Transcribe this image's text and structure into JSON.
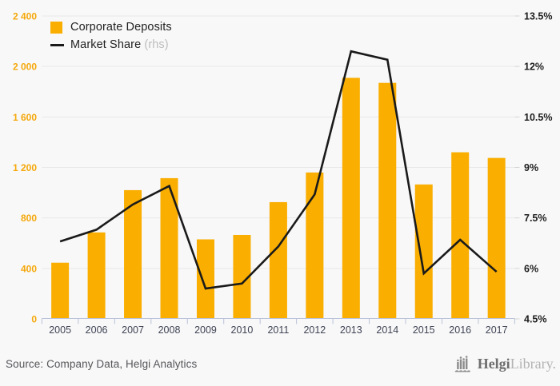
{
  "legend": {
    "series1": "Corporate Deposits",
    "series2": "Market Share",
    "series2_suffix": "(rhs)"
  },
  "footer": {
    "source": "Source: Company Data, Helgi Analytics",
    "logo_bold": "Helgi",
    "logo_light": "Library."
  },
  "colors": {
    "bar": "#f9ae00",
    "line": "#1a1a1a",
    "left_axis_label": "#f5a80c",
    "right_axis_label": "#1d1d1d",
    "gridline": "#e9e9e9",
    "right_tick": "#d5d5d5",
    "axis_line": "#b9c2d9",
    "x_label": "#3f4354",
    "background": "#f8f8f8"
  },
  "chart_data": {
    "type": "bar",
    "title": "",
    "categories": [
      "2005",
      "2006",
      "2007",
      "2008",
      "2009",
      "2010",
      "2011",
      "2012",
      "2013",
      "2014",
      "2015",
      "2016",
      "2017"
    ],
    "series": [
      {
        "name": "Corporate Deposits",
        "type": "bar",
        "axis": "left",
        "values": [
          445,
          685,
          1020,
          1115,
          630,
          665,
          925,
          1160,
          1910,
          1870,
          1065,
          1320,
          1275
        ]
      },
      {
        "name": "Market Share (rhs)",
        "type": "line",
        "axis": "right",
        "values": [
          6.8,
          7.15,
          7.9,
          8.45,
          5.4,
          5.55,
          6.65,
          8.2,
          12.45,
          12.2,
          5.85,
          6.85,
          5.9
        ]
      }
    ],
    "left_axis": {
      "min": 0,
      "max": 2400,
      "ticks": [
        0,
        400,
        800,
        1200,
        1600,
        2000,
        2400
      ],
      "tick_labels": [
        "0",
        "400",
        "800",
        "1 200",
        "1 600",
        "2 000",
        "2 400"
      ]
    },
    "right_axis": {
      "min": 4.5,
      "max": 13.5,
      "ticks": [
        4.5,
        6,
        7.5,
        9,
        10.5,
        12,
        13.5
      ],
      "tick_labels": [
        "4.5%",
        "6%",
        "7.5%",
        "9%",
        "10.5%",
        "12%",
        "13.5%"
      ]
    },
    "grid": true,
    "legend_position": "top-left"
  }
}
